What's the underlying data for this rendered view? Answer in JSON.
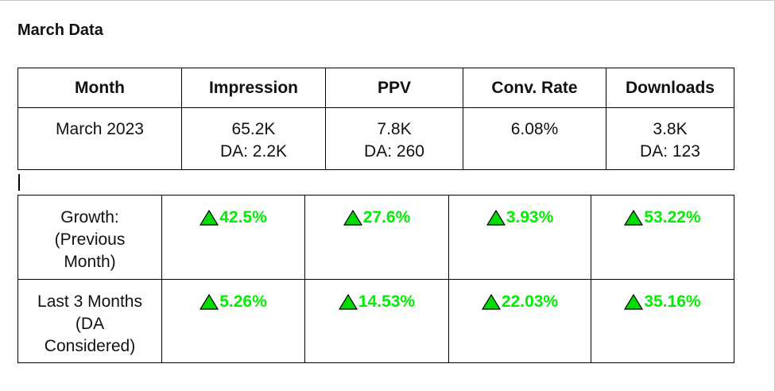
{
  "title": "March Data",
  "main_table": {
    "headers": [
      "Month",
      "Impression",
      "PPV",
      "Conv. Rate",
      "Downloads"
    ],
    "row": {
      "month": "March 2023",
      "impression": {
        "value": "65.2K",
        "da": "DA: 2.2K"
      },
      "ppv": {
        "value": "7.8K",
        "da": "DA: 260"
      },
      "conv_rate": {
        "value": "6.08%"
      },
      "downloads": {
        "value": "3.8K",
        "da": "DA: 123"
      }
    }
  },
  "growth_table": {
    "rows": [
      {
        "label_lines": [
          "Growth:",
          "(Previous",
          "Month)"
        ],
        "values": [
          "42.5%",
          "27.6%",
          "3.93%",
          "53.22%"
        ]
      },
      {
        "label_lines": [
          "Last 3 Months",
          "(DA",
          "Considered)"
        ],
        "values": [
          "5.26%",
          "14.53%",
          "22.03%",
          "35.16%"
        ]
      }
    ]
  },
  "colors": {
    "growth_text": "#00ee00",
    "up_arrow_fill": "#00dd00",
    "border": "#000000"
  },
  "icons": {
    "up_indicator": "triangle-up-icon"
  }
}
